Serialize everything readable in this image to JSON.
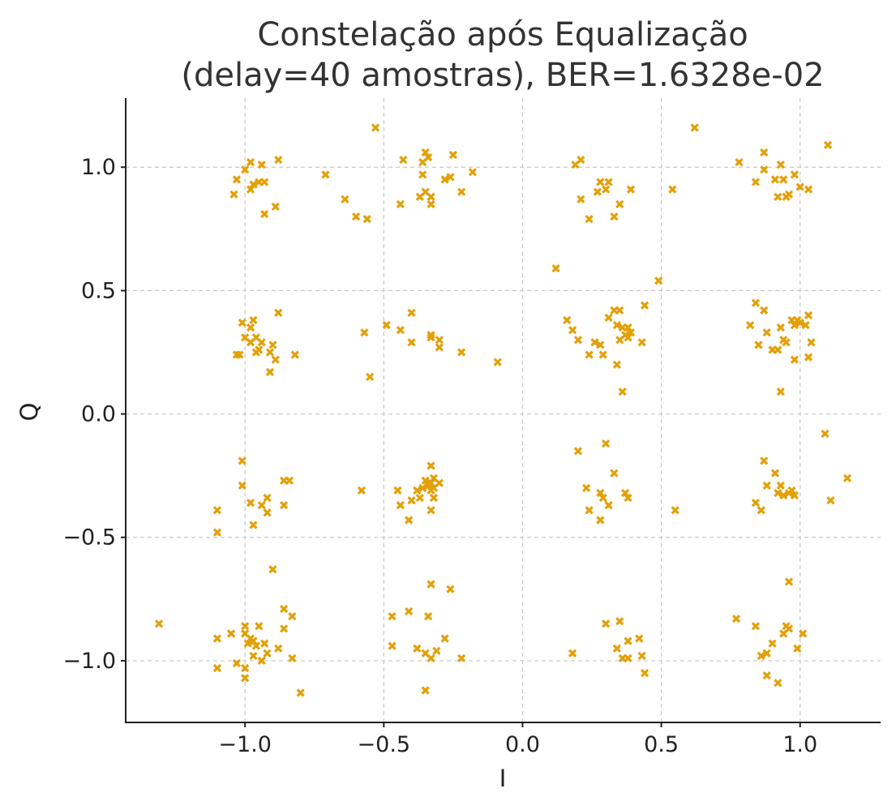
{
  "chart_data": {
    "type": "scatter",
    "title_lines": [
      "Constelação após Equalização",
      "(delay=40 amostras), BER=1.6328e-02"
    ],
    "xlabel": "I",
    "ylabel": "Q",
    "xlim": [
      -1.43,
      1.29
    ],
    "ylim": [
      -1.25,
      1.28
    ],
    "xticks": [
      -1.0,
      -0.5,
      0.0,
      0.5,
      1.0
    ],
    "xtick_labels": [
      "−1.0",
      "−0.5",
      "0.0",
      "0.5",
      "1.0"
    ],
    "yticks": [
      -1.0,
      -0.5,
      0.0,
      0.5,
      1.0
    ],
    "ytick_labels": [
      "−1.0",
      "−0.5",
      "0.0",
      "0.5",
      "1.0"
    ],
    "grid": true,
    "marker": "x",
    "color": "#E3A008",
    "points": [
      [
        -0.98,
        1.02
      ],
      [
        -1.04,
        0.89
      ],
      [
        -1.03,
        0.95
      ],
      [
        -1.0,
        0.99
      ],
      [
        -0.97,
        0.93
      ],
      [
        -0.98,
        0.91
      ],
      [
        -0.95,
        0.94
      ],
      [
        -0.94,
        1.01
      ],
      [
        -0.93,
        0.94
      ],
      [
        -0.88,
        1.03
      ],
      [
        -0.93,
        0.81
      ],
      [
        -0.89,
        0.84
      ],
      [
        -0.71,
        0.97
      ],
      [
        -0.64,
        0.87
      ],
      [
        -0.6,
        0.8
      ],
      [
        -0.56,
        0.79
      ],
      [
        -0.53,
        1.16
      ],
      [
        -0.43,
        1.03
      ],
      [
        -0.44,
        0.85
      ],
      [
        -0.36,
        1.02
      ],
      [
        -0.36,
        0.97
      ],
      [
        -0.35,
        1.06
      ],
      [
        -0.34,
        1.04
      ],
      [
        -0.35,
        0.9
      ],
      [
        -0.37,
        0.88
      ],
      [
        -0.33,
        0.88
      ],
      [
        -0.33,
        0.85
      ],
      [
        -0.28,
        0.95
      ],
      [
        -0.26,
        0.96
      ],
      [
        -0.25,
        1.05
      ],
      [
        -0.22,
        0.9
      ],
      [
        -0.18,
        0.98
      ],
      [
        0.19,
        1.01
      ],
      [
        0.21,
        1.03
      ],
      [
        0.21,
        0.87
      ],
      [
        0.24,
        0.79
      ],
      [
        0.27,
        0.9
      ],
      [
        0.28,
        0.94
      ],
      [
        0.3,
        0.91
      ],
      [
        0.31,
        0.94
      ],
      [
        0.33,
        0.8
      ],
      [
        0.35,
        0.85
      ],
      [
        0.39,
        0.91
      ],
      [
        0.54,
        0.91
      ],
      [
        0.62,
        1.16
      ],
      [
        0.78,
        1.02
      ],
      [
        0.84,
        0.94
      ],
      [
        0.87,
        1.06
      ],
      [
        0.87,
        0.99
      ],
      [
        0.91,
        0.95
      ],
      [
        0.92,
        0.88
      ],
      [
        0.93,
        1.01
      ],
      [
        0.94,
        0.95
      ],
      [
        0.95,
        0.88
      ],
      [
        0.96,
        0.89
      ],
      [
        0.98,
        0.97
      ],
      [
        1.0,
        0.92
      ],
      [
        1.03,
        0.91
      ],
      [
        1.1,
        1.09
      ],
      [
        -1.01,
        0.37
      ],
      [
        -0.97,
        0.38
      ],
      [
        -0.98,
        0.35
      ],
      [
        -0.98,
        0.29
      ],
      [
        -0.96,
        0.31
      ],
      [
        -0.96,
        0.25
      ],
      [
        -0.94,
        0.29
      ],
      [
        -0.95,
        0.26
      ],
      [
        -0.91,
        0.25
      ],
      [
        -0.9,
        0.28
      ],
      [
        -0.89,
        0.22
      ],
      [
        -0.88,
        0.41
      ],
      [
        -0.82,
        0.24
      ],
      [
        -1.02,
        0.24
      ],
      [
        -1.03,
        0.24
      ],
      [
        -0.91,
        0.17
      ],
      [
        -1.0,
        0.31
      ],
      [
        -0.57,
        0.33
      ],
      [
        -0.55,
        0.15
      ],
      [
        -0.49,
        0.36
      ],
      [
        -0.44,
        0.34
      ],
      [
        -0.4,
        0.41
      ],
      [
        -0.4,
        0.29
      ],
      [
        -0.33,
        0.32
      ],
      [
        -0.33,
        0.31
      ],
      [
        -0.3,
        0.3
      ],
      [
        -0.3,
        0.27
      ],
      [
        -0.22,
        0.25
      ],
      [
        -0.09,
        0.21
      ],
      [
        0.12,
        0.59
      ],
      [
        0.16,
        0.38
      ],
      [
        0.18,
        0.34
      ],
      [
        0.2,
        0.3
      ],
      [
        0.24,
        0.24
      ],
      [
        0.26,
        0.29
      ],
      [
        0.28,
        0.28
      ],
      [
        0.29,
        0.24
      ],
      [
        0.31,
        0.39
      ],
      [
        0.33,
        0.42
      ],
      [
        0.34,
        0.36
      ],
      [
        0.35,
        0.42
      ],
      [
        0.35,
        0.3
      ],
      [
        0.34,
        0.2
      ],
      [
        0.36,
        0.35
      ],
      [
        0.37,
        0.32
      ],
      [
        0.38,
        0.35
      ],
      [
        0.39,
        0.33
      ],
      [
        0.38,
        0.31
      ],
      [
        0.43,
        0.29
      ],
      [
        0.44,
        0.44
      ],
      [
        0.49,
        0.54
      ],
      [
        0.36,
        0.09
      ],
      [
        0.82,
        0.36
      ],
      [
        0.84,
        0.45
      ],
      [
        0.85,
        0.28
      ],
      [
        0.87,
        0.42
      ],
      [
        0.88,
        0.33
      ],
      [
        0.9,
        0.26
      ],
      [
        0.92,
        0.26
      ],
      [
        0.93,
        0.35
      ],
      [
        0.94,
        0.3
      ],
      [
        0.95,
        0.29
      ],
      [
        0.97,
        0.38
      ],
      [
        0.98,
        0.36
      ],
      [
        0.99,
        0.38
      ],
      [
        1.0,
        0.37
      ],
      [
        1.02,
        0.36
      ],
      [
        1.03,
        0.4
      ],
      [
        1.03,
        0.23
      ],
      [
        1.04,
        0.29
      ],
      [
        0.98,
        0.22
      ],
      [
        0.93,
        0.09
      ],
      [
        -1.1,
        -0.39
      ],
      [
        -1.1,
        -0.48
      ],
      [
        -1.01,
        -0.19
      ],
      [
        -1.01,
        -0.29
      ],
      [
        -0.98,
        -0.36
      ],
      [
        -0.97,
        -0.45
      ],
      [
        -0.92,
        -0.34
      ],
      [
        -0.92,
        -0.4
      ],
      [
        -0.94,
        -0.37
      ],
      [
        -0.86,
        -0.27
      ],
      [
        -0.84,
        -0.27
      ],
      [
        -0.86,
        -0.37
      ],
      [
        -0.58,
        -0.31
      ],
      [
        -0.45,
        -0.31
      ],
      [
        -0.44,
        -0.37
      ],
      [
        -0.41,
        -0.43
      ],
      [
        -0.4,
        -0.35
      ],
      [
        -0.38,
        -0.31
      ],
      [
        -0.37,
        -0.34
      ],
      [
        -0.36,
        -0.3
      ],
      [
        -0.35,
        -0.27
      ],
      [
        -0.34,
        -0.29
      ],
      [
        -0.33,
        -0.21
      ],
      [
        -0.33,
        -0.28
      ],
      [
        -0.32,
        -0.26
      ],
      [
        -0.33,
        -0.31
      ],
      [
        -0.32,
        -0.34
      ],
      [
        -0.33,
        -0.39
      ],
      [
        -0.32,
        -0.3
      ],
      [
        -0.3,
        -0.28
      ],
      [
        0.2,
        -0.15
      ],
      [
        0.23,
        -0.3
      ],
      [
        0.24,
        -0.39
      ],
      [
        0.28,
        -0.32
      ],
      [
        0.28,
        -0.43
      ],
      [
        0.29,
        -0.34
      ],
      [
        0.3,
        -0.12
      ],
      [
        0.31,
        -0.37
      ],
      [
        0.33,
        -0.24
      ],
      [
        0.37,
        -0.32
      ],
      [
        0.38,
        -0.34
      ],
      [
        0.55,
        -0.39
      ],
      [
        0.84,
        -0.36
      ],
      [
        0.86,
        -0.39
      ],
      [
        0.87,
        -0.19
      ],
      [
        0.88,
        -0.29
      ],
      [
        0.91,
        -0.24
      ],
      [
        0.92,
        -0.32
      ],
      [
        0.93,
        -0.29
      ],
      [
        0.94,
        -0.33
      ],
      [
        0.96,
        -0.32
      ],
      [
        0.97,
        -0.31
      ],
      [
        0.98,
        -0.33
      ],
      [
        1.09,
        -0.08
      ],
      [
        1.11,
        -0.35
      ],
      [
        1.17,
        -0.26
      ],
      [
        -1.31,
        -0.85
      ],
      [
        -1.1,
        -0.91
      ],
      [
        -1.05,
        -0.89
      ],
      [
        -1.03,
        -1.01
      ],
      [
        -1.0,
        -0.86
      ],
      [
        -1.0,
        -0.89
      ],
      [
        -0.99,
        -0.93
      ],
      [
        -0.98,
        -0.91
      ],
      [
        -0.97,
        -0.92
      ],
      [
        -0.96,
        -0.94
      ],
      [
        -0.95,
        -0.86
      ],
      [
        -0.94,
        -1.0
      ],
      [
        -0.93,
        -0.93
      ],
      [
        -0.92,
        -0.97
      ],
      [
        -0.9,
        -0.63
      ],
      [
        -0.88,
        -0.95
      ],
      [
        -0.86,
        -0.79
      ],
      [
        -0.86,
        -0.87
      ],
      [
        -0.83,
        -0.82
      ],
      [
        -0.83,
        -0.99
      ],
      [
        -0.8,
        -1.13
      ],
      [
        -1.0,
        -1.07
      ],
      [
        -1.0,
        -1.03
      ],
      [
        -1.1,
        -1.03
      ],
      [
        -0.97,
        -0.98
      ],
      [
        -0.47,
        -0.82
      ],
      [
        -0.47,
        -0.94
      ],
      [
        -0.41,
        -0.8
      ],
      [
        -0.38,
        -0.95
      ],
      [
        -0.35,
        -0.97
      ],
      [
        -0.34,
        -0.82
      ],
      [
        -0.33,
        -0.69
      ],
      [
        -0.33,
        -0.99
      ],
      [
        -0.31,
        -0.96
      ],
      [
        -0.28,
        -0.91
      ],
      [
        -0.26,
        -0.71
      ],
      [
        -0.22,
        -0.99
      ],
      [
        -0.35,
        -1.12
      ],
      [
        0.18,
        -0.97
      ],
      [
        0.3,
        -0.85
      ],
      [
        0.34,
        -0.95
      ],
      [
        0.35,
        -0.84
      ],
      [
        0.36,
        -0.99
      ],
      [
        0.38,
        -0.92
      ],
      [
        0.38,
        -0.99
      ],
      [
        0.42,
        -0.91
      ],
      [
        0.43,
        -0.98
      ],
      [
        0.44,
        -1.05
      ],
      [
        0.77,
        -0.83
      ],
      [
        0.84,
        -0.86
      ],
      [
        0.86,
        -0.98
      ],
      [
        0.88,
        -0.97
      ],
      [
        0.88,
        -1.06
      ],
      [
        0.9,
        -0.93
      ],
      [
        0.92,
        -1.09
      ],
      [
        0.94,
        -0.89
      ],
      [
        0.95,
        -0.86
      ],
      [
        0.96,
        -0.87
      ],
      [
        0.96,
        -0.68
      ],
      [
        0.99,
        -0.95
      ],
      [
        1.01,
        -0.89
      ]
    ]
  }
}
